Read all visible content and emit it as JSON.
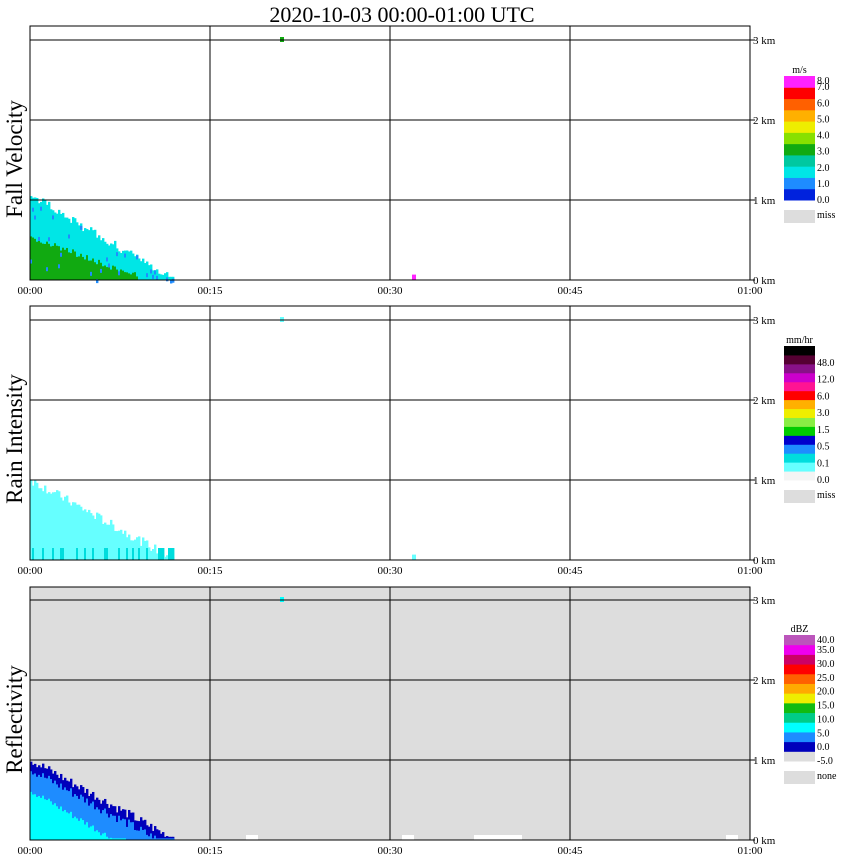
{
  "title": "2020-10-03   00:00-01:00 UTC",
  "x_ticks": [
    "00:00",
    "00:15",
    "00:30",
    "00:45",
    "01:00"
  ],
  "y_ticks": [
    "0 km",
    "1 km",
    "2 km",
    "3 km"
  ],
  "chart_data": [
    {
      "type": "heatmap",
      "ylabel": "Fall Velocity",
      "xlim": [
        "00:00",
        "01:00"
      ],
      "ylim_km": [
        0,
        3.2
      ],
      "grid": true,
      "background": "#ffffff",
      "colorbar": {
        "unit": "m/s",
        "colors": [
          "#0022dd",
          "#1e8cff",
          "#00e6e6",
          "#00c8a0",
          "#11aa11",
          "#88e000",
          "#eeee00",
          "#ffb000",
          "#ff6000",
          "#ff0000",
          "#ff22ff"
        ],
        "labels": [
          "0.0",
          "1.0",
          "2.0",
          "3.0",
          "4.0",
          "5.0",
          "6.0",
          "7.0",
          "8.0"
        ],
        "miss_label": "miss",
        "miss_color": "#dddddd"
      },
      "echo_regions": [
        {
          "desc": "low-level rain echo",
          "x_start_min": 0,
          "x_end_min": 12,
          "top_km_at_start": 1.05,
          "dominant_color": "#00e6e6",
          "core_color": "#11aa11",
          "core_top_km": 0.5
        },
        {
          "desc": "isolated return aloft",
          "time": "00:21",
          "height_km": 3.0,
          "color": "#11aa11"
        },
        {
          "desc": "isolated near-surface return",
          "time": "00:32",
          "height_km": 0.03,
          "color": "#ff22ff"
        }
      ]
    },
    {
      "type": "heatmap",
      "ylabel": "Rain Intensity",
      "xlim": [
        "00:00",
        "01:00"
      ],
      "ylim_km": [
        0,
        3.2
      ],
      "grid": true,
      "background": "#ffffff",
      "colorbar": {
        "unit": "mm/hr",
        "colors": [
          "#f4f4f4",
          "#66ffff",
          "#00dddd",
          "#1e8cff",
          "#0000cc",
          "#00cc00",
          "#88ee44",
          "#eeee00",
          "#ffb000",
          "#ff0000",
          "#ff1493",
          "#cc00cc",
          "#881188",
          "#550033",
          "#000000"
        ],
        "labels": [
          "0.0",
          "0.1",
          "0.5",
          "1.5",
          "3.0",
          "6.0",
          "12.0",
          "48.0"
        ],
        "miss_label": "miss",
        "miss_color": "#dddddd"
      },
      "echo_regions": [
        {
          "desc": "light rain echo",
          "x_start_min": 0,
          "x_end_min": 12,
          "top_km_at_start": 1.0,
          "dominant_color": "#66ffff"
        },
        {
          "desc": "isolated return aloft",
          "time": "00:21",
          "height_km": 3.0,
          "color": "#66ffff"
        },
        {
          "desc": "isolated near-surface return",
          "time": "00:32",
          "height_km": 0.03,
          "color": "#66ffff"
        }
      ]
    },
    {
      "type": "heatmap",
      "ylabel": "Reflectivity",
      "xlim": [
        "00:00",
        "01:00"
      ],
      "ylim_km": [
        0,
        3.2
      ],
      "grid": true,
      "background": "#dddddd",
      "colorbar": {
        "unit": "dBZ",
        "colors": [
          "#dddddd",
          "#0000bb",
          "#1e8cff",
          "#00ffff",
          "#00cc88",
          "#11bb11",
          "#eeee00",
          "#ffaa00",
          "#ff6000",
          "#ff0000",
          "#cc0066",
          "#ee00ee",
          "#bb55bb"
        ],
        "labels": [
          "-5.0",
          "0.0",
          "5.0",
          "10.0",
          "15.0",
          "20.0",
          "25.0",
          "30.0",
          "35.0",
          "40.0"
        ],
        "miss_label": "none",
        "miss_color": "#dddddd"
      },
      "echo_regions": [
        {
          "desc": "low-level echo",
          "x_start_min": 0,
          "x_end_min": 12,
          "top_km_at_start": 1.0,
          "edge_color": "#0000bb",
          "mid_color": "#1e8cff",
          "core_color": "#00ffff"
        },
        {
          "desc": "isolated return aloft",
          "time": "00:21",
          "height_km": 3.0,
          "color": "#00ffff"
        },
        {
          "desc": "no-echo near-surface gaps",
          "times": [
            "00:18",
            "00:31",
            "00:37-00:41",
            "00:58"
          ],
          "color": "#ffffff"
        }
      ]
    }
  ]
}
